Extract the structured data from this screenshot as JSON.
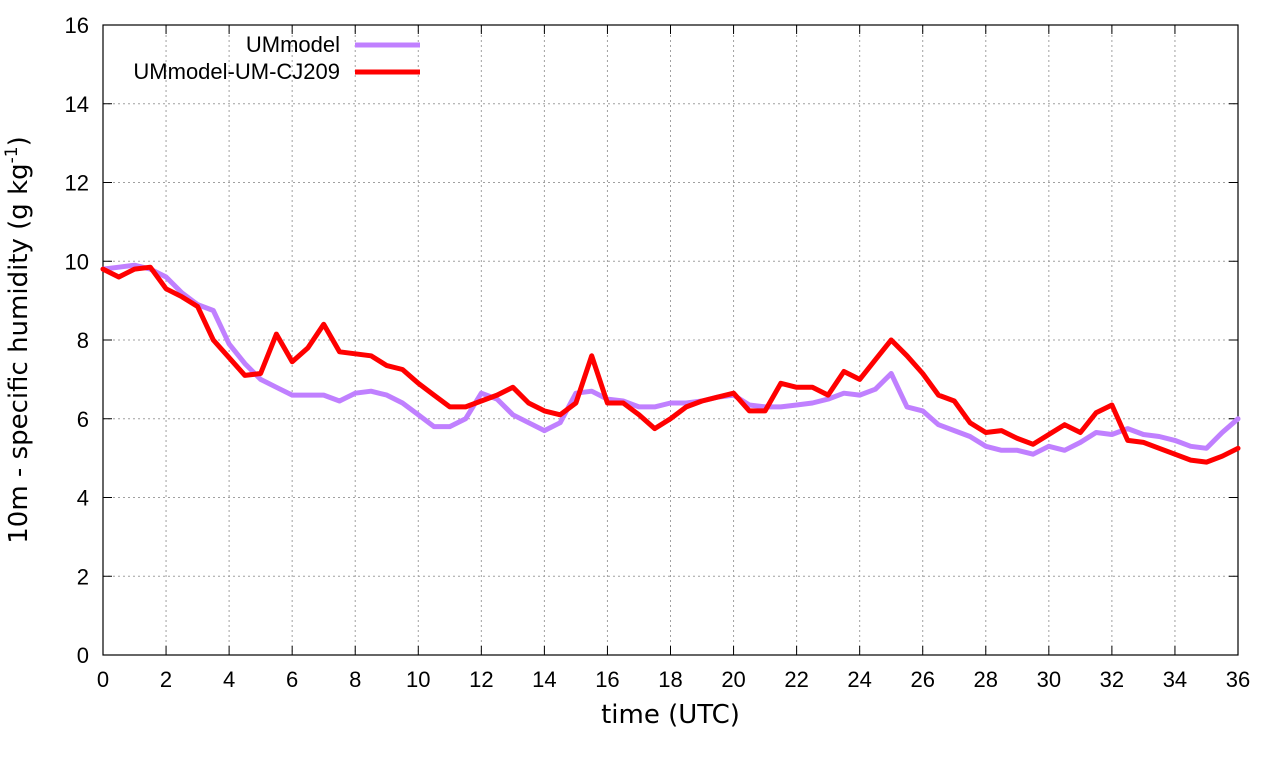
{
  "chart_data": {
    "type": "line",
    "title": "",
    "xlabel": "time (UTC)",
    "ylabel_base": "10m - specific humidity (g kg",
    "ylabel_sup": "-1",
    "ylabel_close": ")",
    "xlim": [
      0,
      36
    ],
    "ylim": [
      0,
      16
    ],
    "xticks": [
      "0",
      "2",
      "4",
      "6",
      "8",
      "10",
      "12",
      "14",
      "16",
      "18",
      "20",
      "22",
      "24",
      "26",
      "28",
      "30",
      "32",
      "34",
      "36"
    ],
    "yticks": [
      "0",
      "2",
      "4",
      "6",
      "8",
      "10",
      "12",
      "14",
      "16"
    ],
    "grid": true,
    "legend_position": "top-left",
    "x": [
      0,
      0.5,
      1,
      1.5,
      2,
      2.5,
      3,
      3.5,
      4,
      4.5,
      5,
      5.5,
      6,
      6.5,
      7,
      7.5,
      8,
      8.5,
      9,
      9.5,
      10,
      10.5,
      11,
      11.5,
      12,
      12.5,
      13,
      13.5,
      14,
      14.5,
      15,
      15.5,
      16,
      16.5,
      17,
      17.5,
      18,
      18.5,
      19,
      19.5,
      20,
      20.5,
      21,
      21.5,
      22,
      22.5,
      23,
      23.5,
      24,
      24.5,
      25,
      25.5,
      26,
      26.5,
      27,
      27.5,
      28,
      28.5,
      29,
      29.5,
      30,
      30.5,
      31,
      31.5,
      32,
      32.5,
      33,
      33.5,
      34,
      34.5,
      35,
      35.5,
      36
    ],
    "series": [
      {
        "name": "UMmodel",
        "color": "#c080ff",
        "values": [
          9.8,
          9.85,
          9.9,
          9.8,
          9.6,
          9.2,
          8.9,
          8.75,
          7.9,
          7.4,
          7.0,
          6.8,
          6.6,
          6.6,
          6.6,
          6.45,
          6.65,
          6.7,
          6.6,
          6.4,
          6.1,
          5.8,
          5.8,
          6.0,
          6.65,
          6.5,
          6.1,
          5.9,
          5.7,
          5.9,
          6.65,
          6.7,
          6.5,
          6.45,
          6.3,
          6.3,
          6.4,
          6.4,
          6.45,
          6.55,
          6.6,
          6.35,
          6.3,
          6.3,
          6.35,
          6.4,
          6.5,
          6.65,
          6.6,
          6.75,
          7.15,
          6.3,
          6.2,
          5.85,
          5.7,
          5.55,
          5.3,
          5.2,
          5.2,
          5.1,
          5.3,
          5.2,
          5.4,
          5.65,
          5.6,
          5.75,
          5.6,
          5.55,
          5.45,
          5.3,
          5.25,
          5.65,
          6.0
        ]
      },
      {
        "name": "UMmodel-UM-CJ209",
        "color": "#ff0000",
        "values": [
          9.8,
          9.6,
          9.8,
          9.85,
          9.3,
          9.1,
          8.85,
          8.0,
          7.55,
          7.1,
          7.15,
          8.15,
          7.45,
          7.8,
          8.4,
          7.7,
          7.65,
          7.6,
          7.35,
          7.25,
          6.9,
          6.6,
          6.3,
          6.3,
          6.45,
          6.6,
          6.8,
          6.4,
          6.2,
          6.1,
          6.4,
          7.6,
          6.4,
          6.4,
          6.1,
          5.75,
          6.0,
          6.3,
          6.45,
          6.55,
          6.65,
          6.2,
          6.2,
          6.9,
          6.8,
          6.8,
          6.6,
          7.2,
          7.0,
          7.5,
          8.0,
          7.6,
          7.15,
          6.6,
          6.45,
          5.9,
          5.65,
          5.7,
          5.5,
          5.35,
          5.6,
          5.85,
          5.65,
          6.15,
          6.35,
          5.45,
          5.4,
          5.25,
          5.1,
          4.95,
          4.9,
          5.05,
          5.25
        ]
      }
    ]
  }
}
